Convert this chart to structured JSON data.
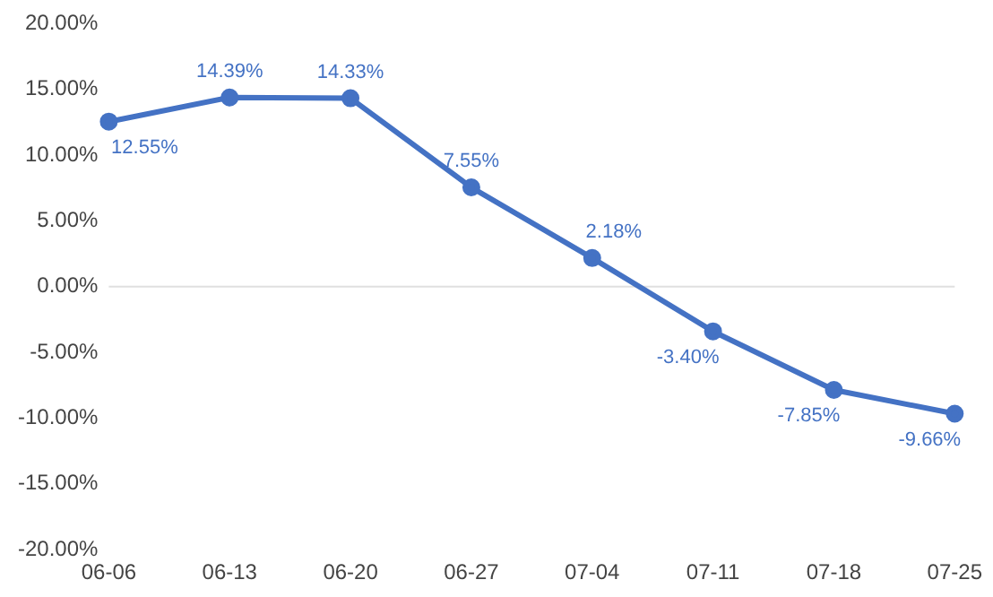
{
  "chart_data": {
    "type": "line",
    "categories": [
      "06-06",
      "06-13",
      "06-20",
      "06-27",
      "07-04",
      "07-11",
      "07-18",
      "07-25"
    ],
    "series": [
      {
        "color": "#4472c4",
        "values": [
          12.55,
          14.39,
          14.33,
          7.55,
          2.18,
          -3.4,
          -7.85,
          -9.66
        ],
        "value_labels": [
          "12.55%",
          "14.39%",
          "14.33%",
          "7.55%",
          "2.18%",
          "-3.40%",
          "-7.85%",
          "-9.66%"
        ]
      }
    ],
    "ylim": [
      -20,
      20
    ],
    "yticks": [
      {
        "value": -20,
        "label": "-20.00%"
      },
      {
        "value": -15,
        "label": "-15.00%"
      },
      {
        "value": -10,
        "label": "-10.00%"
      },
      {
        "value": -5,
        "label": "-5.00%"
      },
      {
        "value": 0,
        "label": "0.00%"
      },
      {
        "value": 5,
        "label": "5.00%"
      },
      {
        "value": 10,
        "label": "10.00%"
      },
      {
        "value": 15,
        "label": "15.00%"
      },
      {
        "value": 20,
        "label": "20.00%"
      }
    ],
    "ref_lines": [
      {
        "axis": "y",
        "value": 0,
        "color": "#e0e0e0"
      }
    ],
    "grid": false,
    "legend": false,
    "marker": "circle",
    "line_style": "solid"
  }
}
